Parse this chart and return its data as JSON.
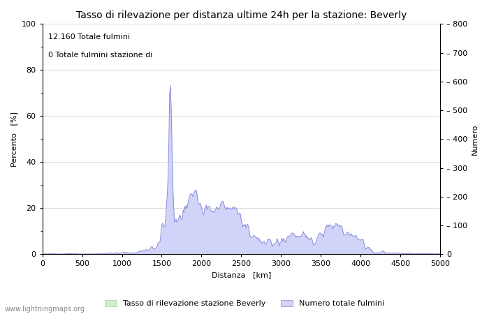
{
  "title": "Tasso di rilevazione per distanza ultime 24h per la stazione: Beverly",
  "xlabel": "Distanza   [km]",
  "ylabel_left": "Percento   [%]",
  "ylabel_right": "Numero",
  "annotation_line1": "12.160 Totale fulmini",
  "annotation_line2": "0 Totale fulmini stazione di",
  "legend_label1": "Tasso di rilevazione stazione Beverly",
  "legend_label2": "Numero totale fulmini",
  "watermark": "www.lightningmaps.org",
  "xlim": [
    0,
    5000
  ],
  "ylim_left": [
    0,
    100
  ],
  "ylim_right": [
    0,
    800
  ],
  "x_ticks": [
    0,
    500,
    1000,
    1500,
    2000,
    2500,
    3000,
    3500,
    4000,
    4500,
    5000
  ],
  "y_ticks_left": [
    0,
    20,
    40,
    60,
    80,
    100
  ],
  "y_ticks_right": [
    0,
    100,
    200,
    300,
    400,
    500,
    600,
    700,
    800
  ],
  "fill_color_green": "#cceecc",
  "fill_color_blue": "#d0d4f8",
  "line_color": "#8888dd",
  "bg_color": "#ffffff",
  "grid_color": "#cccccc",
  "title_fontsize": 10,
  "label_fontsize": 8,
  "tick_fontsize": 8,
  "annot_fontsize": 8,
  "figsize": [
    7.0,
    4.5
  ],
  "dpi": 100
}
